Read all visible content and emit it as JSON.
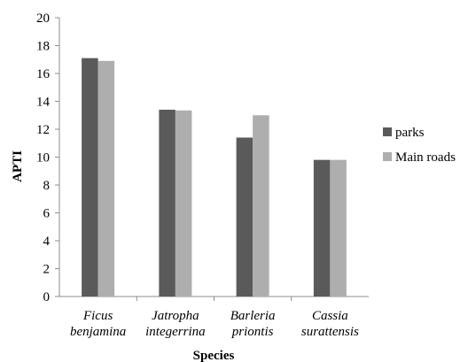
{
  "chart_data": {
    "type": "bar",
    "categories": [
      [
        "Ficus",
        "benjamina"
      ],
      [
        "Jatropha",
        "integerrina"
      ],
      [
        "Barleria",
        "priontis"
      ],
      [
        "Cassia",
        "surattensis"
      ]
    ],
    "series": [
      {
        "name": "parks",
        "color": "#5a5a5a",
        "values": [
          17.1,
          13.4,
          11.4,
          9.8
        ]
      },
      {
        "name": "Main roads",
        "color": "#aeaeae",
        "values": [
          16.9,
          13.35,
          13.0,
          9.8
        ]
      }
    ],
    "xlabel": "Species",
    "ylabel": "APTI",
    "ylim": [
      0,
      20
    ],
    "yticks": [
      0,
      2,
      4,
      6,
      8,
      10,
      12,
      14,
      16,
      18,
      20
    ],
    "grid": false,
    "legend_position": "right"
  }
}
